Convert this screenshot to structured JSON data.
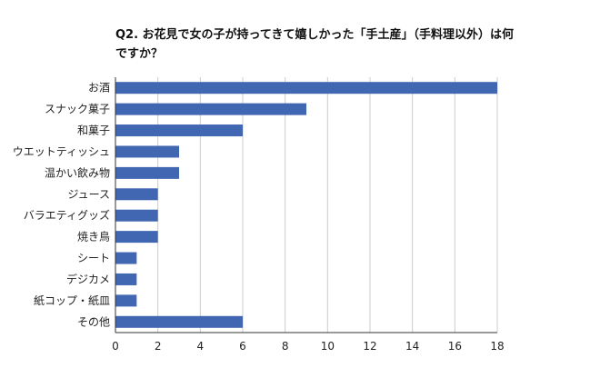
{
  "chart_data": {
    "type": "bar",
    "orientation": "horizontal",
    "title": "Q2. お花見で女の子が持ってきて嬉しかった「手土産」（手料理以外）は何ですか？",
    "categories": [
      "お酒",
      "スナック菓子",
      "和菓子",
      "ウエットティッシュ",
      "温かい飲み物",
      "ジュース",
      "バラエティグッズ",
      "焼き鳥",
      "シート",
      "デジカメ",
      "紙コップ・紙皿",
      "その他"
    ],
    "values": [
      18,
      9,
      6,
      3,
      3,
      2,
      2,
      2,
      1,
      1,
      1,
      6
    ],
    "xlim": [
      0,
      18
    ],
    "xticks": [
      0,
      2,
      4,
      6,
      8,
      10,
      12,
      14,
      16,
      18
    ],
    "grid": true,
    "legend": "none",
    "bar_color": "#4267b2",
    "grid_color": "#cccccc",
    "axis_color": "#333333"
  }
}
